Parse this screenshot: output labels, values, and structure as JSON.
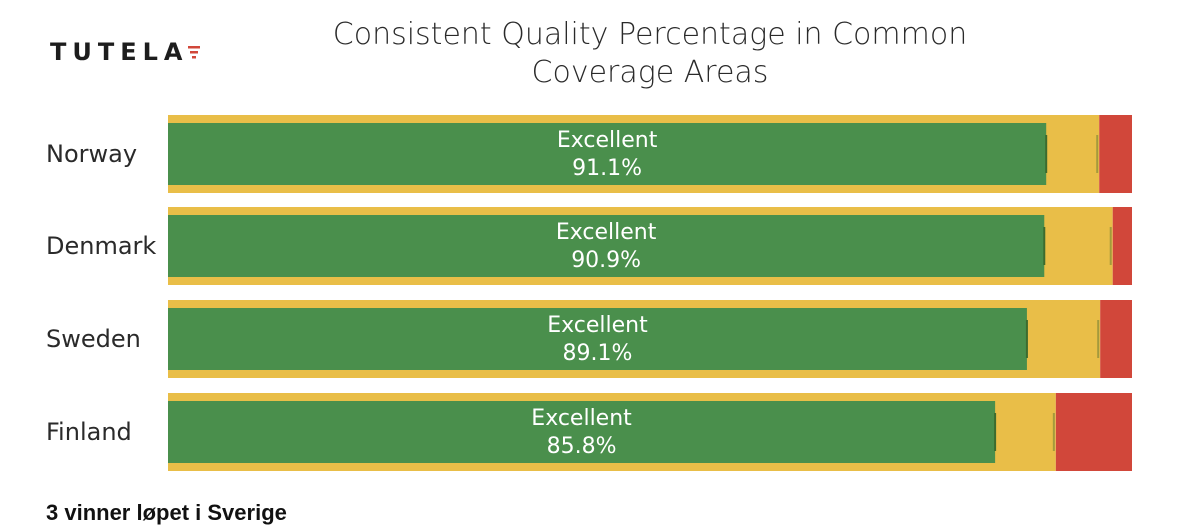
{
  "brand": {
    "name": "TUTELA"
  },
  "footer_text": "3 vinner løpet i Sverige",
  "colors": {
    "excellent": "#4a8f4c",
    "good": "#e9be48",
    "poor": "#d1473a",
    "marker": "#3d6b2e"
  },
  "chart_data": {
    "type": "bar",
    "orientation": "horizontal",
    "stacked": true,
    "title": "Consistent Quality Percentage in Common Coverage Areas",
    "categories": [
      "Norway",
      "Denmark",
      "Sweden",
      "Finland"
    ],
    "xlim": [
      0,
      100
    ],
    "series": [
      {
        "name": "Excellent",
        "values": [
          91.1,
          90.9,
          89.1,
          85.8
        ]
      },
      {
        "values": [
          5.5,
          7.1,
          7.6,
          6.3
        ]
      },
      {
        "values": [
          3.4,
          2.0,
          3.3,
          7.9
        ]
      }
    ],
    "bar_labels": [
      {
        "text": "Excellent",
        "value": "91.1%"
      },
      {
        "text": "Excellent",
        "value": "90.9%"
      },
      {
        "text": "Excellent",
        "value": "89.1%"
      },
      {
        "text": "Excellent",
        "value": "85.8%"
      }
    ],
    "grid": false,
    "legend": "none"
  }
}
